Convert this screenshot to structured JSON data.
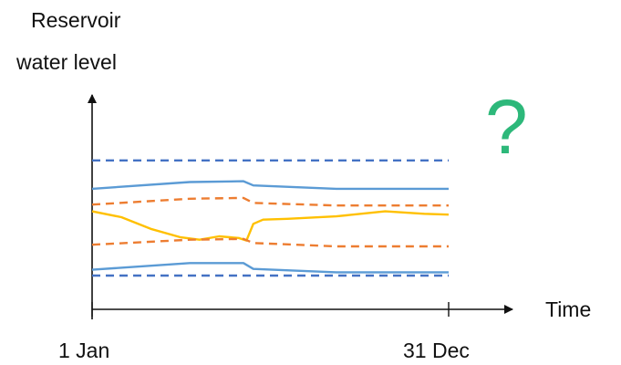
{
  "chart_data": {
    "type": "line",
    "title": "",
    "ylabel_lines": [
      "Reservoir",
      "water level"
    ],
    "xlabel": "Time",
    "x_ticks": [
      "1 Jan",
      "31 Dec"
    ],
    "xlim": [
      0,
      365
    ],
    "ylim": [
      0,
      10
    ],
    "grid": false,
    "legend": "none",
    "annotation": "?",
    "series": [
      {
        "style": "dashed",
        "color": "#4472C4",
        "x": [
          0,
          365
        ],
        "y": [
          7.5,
          7.5
        ]
      },
      {
        "style": "solid",
        "color": "#5B9BD5",
        "x": [
          0,
          100,
          155,
          165,
          250,
          365
        ],
        "y": [
          5.8,
          6.2,
          6.25,
          6.0,
          5.8,
          5.8
        ]
      },
      {
        "style": "dashed",
        "color": "#ED7D31",
        "x": [
          0,
          100,
          155,
          165,
          250,
          365
        ],
        "y": [
          4.85,
          5.2,
          5.25,
          4.95,
          4.8,
          4.8
        ]
      },
      {
        "style": "solid",
        "color": "#FFC000",
        "x": [
          0,
          30,
          60,
          90,
          110,
          130,
          150,
          158,
          165,
          175,
          200,
          250,
          300,
          340,
          365
        ],
        "y": [
          4.45,
          4.1,
          3.4,
          2.9,
          2.75,
          2.95,
          2.85,
          2.7,
          3.7,
          3.95,
          4.0,
          4.15,
          4.45,
          4.3,
          4.25
        ]
      },
      {
        "style": "dashed",
        "color": "#ED7D31",
        "x": [
          0,
          100,
          155,
          165,
          250,
          365
        ],
        "y": [
          2.45,
          2.75,
          2.8,
          2.55,
          2.35,
          2.35
        ]
      },
      {
        "style": "solid",
        "color": "#5B9BD5",
        "x": [
          0,
          100,
          155,
          165,
          250,
          365
        ],
        "y": [
          0.95,
          1.35,
          1.35,
          1.0,
          0.8,
          0.8
        ]
      },
      {
        "style": "dashed",
        "color": "#4472C4",
        "x": [
          0,
          365
        ],
        "y": [
          0.6,
          0.6
        ]
      }
    ]
  }
}
